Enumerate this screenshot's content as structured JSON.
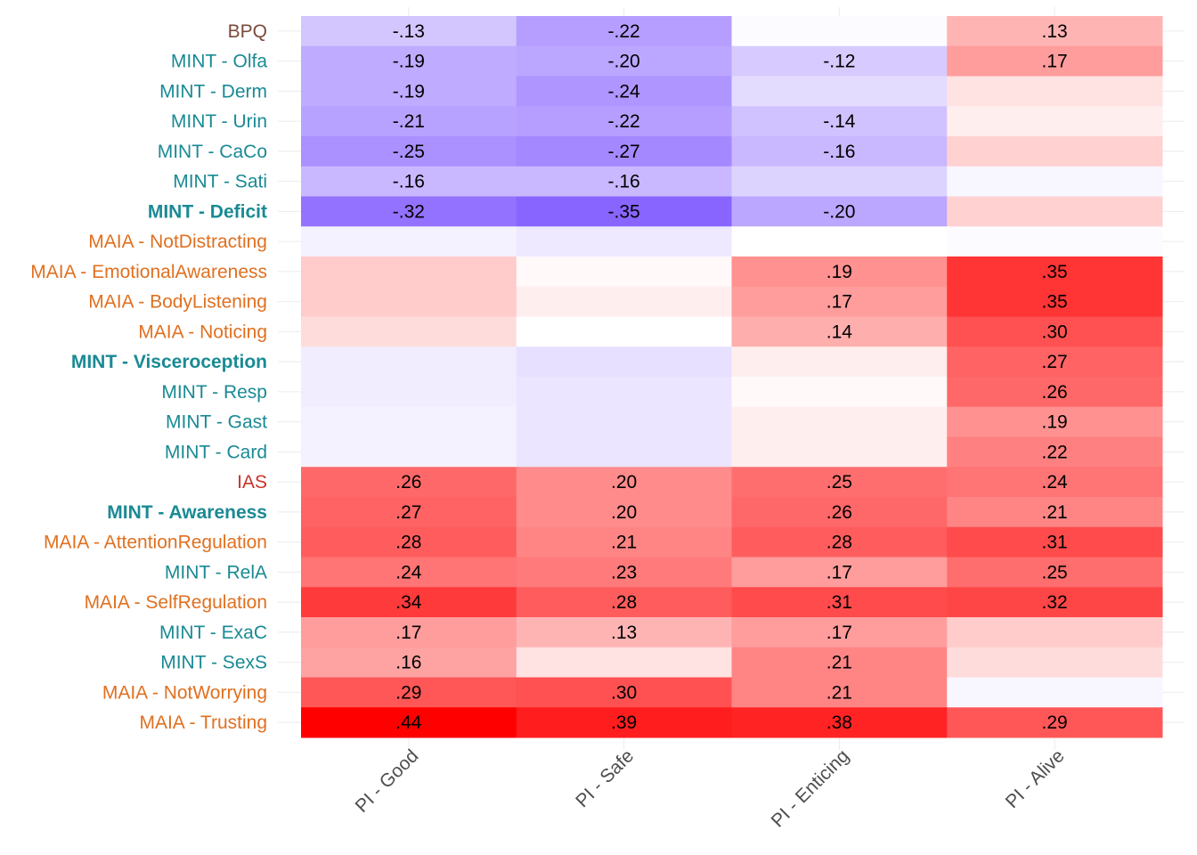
{
  "chart_data": {
    "type": "heatmap",
    "title": "",
    "xlabel": "",
    "ylabel": "",
    "columns": [
      "PI - Good",
      "PI - Safe",
      "PI - Enticing",
      "PI - Alive"
    ],
    "color_scale": {
      "negative": "#6a3dff",
      "zero": "#ffffff",
      "positive": "#ff0000",
      "max_abs": 0.44
    },
    "group_colors": {
      "BPQ": "#7a4a3a",
      "MINT": "#1a8a94",
      "MAIA": "#e07020",
      "IAS": "#c8342a"
    },
    "rows": [
      {
        "label": "BPQ",
        "group": "BPQ",
        "bold": false,
        "values": [
          -0.13,
          -0.22,
          -0.01,
          0.13
        ],
        "labels": [
          "-.13",
          "-.22",
          "",
          ".13"
        ]
      },
      {
        "label": "MINT - Olfa",
        "group": "MINT",
        "bold": false,
        "values": [
          -0.19,
          -0.2,
          -0.12,
          0.17
        ],
        "labels": [
          "-.19",
          "-.20",
          "-.12",
          ".17"
        ]
      },
      {
        "label": "MINT - Derm",
        "group": "MINT",
        "bold": false,
        "values": [
          -0.19,
          -0.24,
          -0.08,
          0.05
        ],
        "labels": [
          "-.19",
          "-.24",
          "",
          ""
        ]
      },
      {
        "label": "MINT - Urin",
        "group": "MINT",
        "bold": false,
        "values": [
          -0.21,
          -0.22,
          -0.14,
          0.03
        ],
        "labels": [
          "-.21",
          "-.22",
          "-.14",
          ""
        ]
      },
      {
        "label": "MINT - CaCo",
        "group": "MINT",
        "bold": false,
        "values": [
          -0.25,
          -0.27,
          -0.16,
          0.08
        ],
        "labels": [
          "-.25",
          "-.27",
          "-.16",
          ""
        ]
      },
      {
        "label": "MINT - Sati",
        "group": "MINT",
        "bold": false,
        "values": [
          -0.16,
          -0.16,
          -0.1,
          -0.02
        ],
        "labels": [
          "-.16",
          "-.16",
          "",
          ""
        ]
      },
      {
        "label": "MINT - Deficit",
        "group": "MINT",
        "bold": true,
        "values": [
          -0.32,
          -0.35,
          -0.2,
          0.08
        ],
        "labels": [
          "-.32",
          "-.35",
          "-.20",
          ""
        ]
      },
      {
        "label": "MAIA - NotDistracting",
        "group": "MAIA",
        "bold": false,
        "values": [
          -0.03,
          -0.05,
          0.0,
          -0.01
        ],
        "labels": [
          "",
          "",
          "",
          ""
        ]
      },
      {
        "label": "MAIA - EmotionalAwareness",
        "group": "MAIA",
        "bold": false,
        "values": [
          0.09,
          0.01,
          0.19,
          0.35
        ],
        "labels": [
          "",
          "",
          ".19",
          ".35"
        ]
      },
      {
        "label": "MAIA - BodyListening",
        "group": "MAIA",
        "bold": false,
        "values": [
          0.09,
          0.03,
          0.17,
          0.35
        ],
        "labels": [
          "",
          "",
          ".17",
          ".35"
        ]
      },
      {
        "label": "MAIA - Noticing",
        "group": "MAIA",
        "bold": false,
        "values": [
          0.06,
          0.0,
          0.14,
          0.3
        ],
        "labels": [
          "",
          "",
          ".14",
          ".30"
        ]
      },
      {
        "label": "MINT - Visceroception",
        "group": "MINT",
        "bold": true,
        "values": [
          -0.04,
          -0.07,
          0.03,
          0.27
        ],
        "labels": [
          "",
          "",
          "",
          ".27"
        ]
      },
      {
        "label": "MINT - Resp",
        "group": "MINT",
        "bold": false,
        "values": [
          -0.04,
          -0.06,
          0.01,
          0.26
        ],
        "labels": [
          "",
          "",
          "",
          ".26"
        ]
      },
      {
        "label": "MINT - Gast",
        "group": "MINT",
        "bold": false,
        "values": [
          -0.03,
          -0.06,
          0.03,
          0.19
        ],
        "labels": [
          "",
          "",
          "",
          ".19"
        ]
      },
      {
        "label": "MINT - Card",
        "group": "MINT",
        "bold": false,
        "values": [
          -0.03,
          -0.06,
          0.03,
          0.22
        ],
        "labels": [
          "",
          "",
          "",
          ".22"
        ]
      },
      {
        "label": "IAS",
        "group": "IAS",
        "bold": false,
        "values": [
          0.26,
          0.2,
          0.25,
          0.24
        ],
        "labels": [
          ".26",
          ".20",
          ".25",
          ".24"
        ]
      },
      {
        "label": "MINT - Awareness",
        "group": "MINT",
        "bold": true,
        "values": [
          0.27,
          0.2,
          0.26,
          0.21
        ],
        "labels": [
          ".27",
          ".20",
          ".26",
          ".21"
        ]
      },
      {
        "label": "MAIA - AttentionRegulation",
        "group": "MAIA",
        "bold": false,
        "values": [
          0.28,
          0.21,
          0.28,
          0.31
        ],
        "labels": [
          ".28",
          ".21",
          ".28",
          ".31"
        ]
      },
      {
        "label": "MINT - RelA",
        "group": "MINT",
        "bold": false,
        "values": [
          0.24,
          0.23,
          0.17,
          0.25
        ],
        "labels": [
          ".24",
          ".23",
          ".17",
          ".25"
        ]
      },
      {
        "label": "MAIA - SelfRegulation",
        "group": "MAIA",
        "bold": false,
        "values": [
          0.34,
          0.28,
          0.31,
          0.32
        ],
        "labels": [
          ".34",
          ".28",
          ".31",
          ".32"
        ]
      },
      {
        "label": "MINT - ExaC",
        "group": "MINT",
        "bold": false,
        "values": [
          0.17,
          0.13,
          0.17,
          0.09
        ],
        "labels": [
          ".17",
          ".13",
          ".17",
          ""
        ]
      },
      {
        "label": "MINT - SexS",
        "group": "MINT",
        "bold": false,
        "values": [
          0.16,
          0.05,
          0.21,
          0.06
        ],
        "labels": [
          ".16",
          "",
          ".21",
          ""
        ]
      },
      {
        "label": "MAIA - NotWorrying",
        "group": "MAIA",
        "bold": false,
        "values": [
          0.29,
          0.3,
          0.21,
          -0.02
        ],
        "labels": [
          ".29",
          ".30",
          ".21",
          ""
        ]
      },
      {
        "label": "MAIA - Trusting",
        "group": "MAIA",
        "bold": false,
        "values": [
          0.44,
          0.39,
          0.38,
          0.29
        ],
        "labels": [
          ".44",
          ".39",
          ".38",
          ".29"
        ]
      }
    ]
  }
}
